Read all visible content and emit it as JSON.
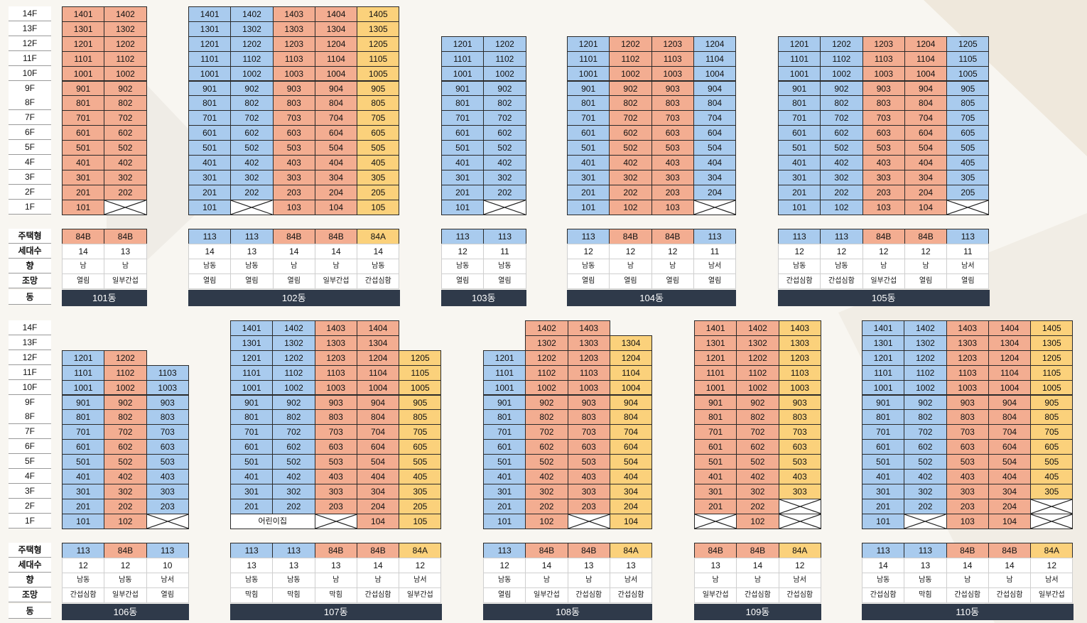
{
  "colors": {
    "blue": "#a9cbee",
    "salmon": "#f3ad91",
    "yellow": "#fbd17b",
    "dong_bar": "#2f3a4a"
  },
  "info_labels": [
    "주택형",
    "세대수",
    "향",
    "조망",
    "동"
  ],
  "floors": {
    "top": [
      "14F",
      "13F",
      "12F",
      "11F",
      "10F",
      "9F",
      "8F",
      "7F",
      "6F",
      "5F",
      "4F",
      "3F",
      "2F",
      "1F"
    ],
    "bottom": [
      "14F",
      "13F",
      "12F",
      "11F",
      "10F",
      "9F",
      "8F",
      "7F",
      "6F",
      "5F",
      "4F",
      "3F",
      "2F",
      "1F"
    ]
  },
  "buildings": [
    {
      "dong": "101동",
      "topFloor": 14,
      "columns": [
        {
          "type": "84B",
          "count": "14",
          "dir": "남",
          "view": "열림",
          "color": "salmon",
          "cells": [
            "1401",
            "1301",
            "1201",
            "1101",
            "1001",
            "901",
            "801",
            "701",
            "601",
            "501",
            "401",
            "301",
            "201",
            "101"
          ]
        },
        {
          "type": "84B",
          "count": "13",
          "dir": "남",
          "view": "일부간섭",
          "color": "salmon",
          "cells": [
            "1402",
            "1302",
            "1202",
            "1102",
            "1002",
            "902",
            "802",
            "702",
            "602",
            "502",
            "402",
            "302",
            "202",
            "X"
          ]
        }
      ]
    },
    {
      "dong": "102동",
      "topFloor": 14,
      "columns": [
        {
          "type": "113",
          "count": "14",
          "dir": "남동",
          "view": "열림",
          "color": "blue",
          "cells": [
            "1401",
            "1301",
            "1201",
            "1101",
            "1001",
            "901",
            "801",
            "701",
            "601",
            "501",
            "401",
            "301",
            "201",
            "101"
          ]
        },
        {
          "type": "113",
          "count": "13",
          "dir": "남동",
          "view": "열림",
          "color": "blue",
          "cells": [
            "1402",
            "1302",
            "1202",
            "1102",
            "1002",
            "902",
            "802",
            "702",
            "602",
            "502",
            "402",
            "302",
            "202",
            "X"
          ]
        },
        {
          "type": "84B",
          "count": "14",
          "dir": "남",
          "view": "열림",
          "color": "salmon",
          "cells": [
            "1403",
            "1303",
            "1203",
            "1103",
            "1003",
            "903",
            "803",
            "703",
            "603",
            "503",
            "403",
            "303",
            "203",
            "103"
          ]
        },
        {
          "type": "84B",
          "count": "14",
          "dir": "남",
          "view": "일부간섭",
          "color": "salmon",
          "cells": [
            "1404",
            "1304",
            "1204",
            "1104",
            "1004",
            "904",
            "804",
            "704",
            "604",
            "504",
            "404",
            "304",
            "204",
            "104"
          ]
        },
        {
          "type": "84A",
          "count": "14",
          "dir": "남동",
          "view": "간섭심함",
          "color": "yellow",
          "cells": [
            "1405",
            "1305",
            "1205",
            "1105",
            "1005",
            "905",
            "805",
            "705",
            "605",
            "505",
            "405",
            "305",
            "205",
            "105"
          ]
        }
      ]
    },
    {
      "dong": "103동",
      "topFloor": 12,
      "columns": [
        {
          "type": "113",
          "count": "12",
          "dir": "남동",
          "view": "열림",
          "color": "blue",
          "cells": [
            "1201",
            "1101",
            "1001",
            "901",
            "801",
            "701",
            "601",
            "501",
            "401",
            "301",
            "201",
            "101"
          ]
        },
        {
          "type": "113",
          "count": "11",
          "dir": "남동",
          "view": "열림",
          "color": "blue",
          "cells": [
            "1202",
            "1102",
            "1002",
            "902",
            "802",
            "702",
            "602",
            "502",
            "402",
            "302",
            "202",
            "X"
          ]
        }
      ]
    },
    {
      "dong": "104동",
      "topFloor": 12,
      "columns": [
        {
          "type": "113",
          "count": "12",
          "dir": "남동",
          "view": "열림",
          "color": "blue",
          "cells": [
            "1201",
            "1101",
            "1001",
            "901",
            "801",
            "701",
            "601",
            "501",
            "401",
            "301",
            "201",
            "101"
          ]
        },
        {
          "type": "84B",
          "count": "12",
          "dir": "남",
          "view": "열림",
          "color": "salmon",
          "cells": [
            "1202",
            "1102",
            "1002",
            "902",
            "802",
            "702",
            "602",
            "502",
            "402",
            "302",
            "202",
            "102"
          ]
        },
        {
          "type": "84B",
          "count": "12",
          "dir": "남",
          "view": "열림",
          "color": "salmon",
          "cells": [
            "1203",
            "1103",
            "1003",
            "903",
            "803",
            "703",
            "603",
            "503",
            "403",
            "303",
            "203",
            "103"
          ]
        },
        {
          "type": "113",
          "count": "11",
          "dir": "남서",
          "view": "열림",
          "color": "blue",
          "cells": [
            "1204",
            "1104",
            "1004",
            "904",
            "804",
            "704",
            "604",
            "504",
            "404",
            "304",
            "204",
            "X"
          ]
        }
      ]
    },
    {
      "dong": "105동",
      "topFloor": 12,
      "columns": [
        {
          "type": "113",
          "count": "12",
          "dir": "남동",
          "view": "간섭심함",
          "color": "blue",
          "cells": [
            "1201",
            "1101",
            "1001",
            "901",
            "801",
            "701",
            "601",
            "501",
            "401",
            "301",
            "201",
            "101"
          ]
        },
        {
          "type": "113",
          "count": "12",
          "dir": "남동",
          "view": "간섭심함",
          "color": "blue",
          "cells": [
            "1202",
            "1102",
            "1002",
            "902",
            "802",
            "702",
            "602",
            "502",
            "402",
            "302",
            "202",
            "102"
          ]
        },
        {
          "type": "84B",
          "count": "12",
          "dir": "남",
          "view": "일부간섭",
          "color": "salmon",
          "cells": [
            "1203",
            "1103",
            "1003",
            "903",
            "803",
            "703",
            "603",
            "503",
            "403",
            "303",
            "203",
            "103"
          ]
        },
        {
          "type": "84B",
          "count": "12",
          "dir": "남",
          "view": "열림",
          "color": "salmon",
          "cells": [
            "1204",
            "1104",
            "1004",
            "904",
            "804",
            "704",
            "604",
            "504",
            "404",
            "304",
            "204",
            "104"
          ]
        },
        {
          "type": "113",
          "count": "11",
          "dir": "남서",
          "view": "열림",
          "color": "blue",
          "cells": [
            "1205",
            "1105",
            "1005",
            "905",
            "805",
            "705",
            "605",
            "505",
            "405",
            "305",
            "205",
            "X"
          ]
        }
      ]
    },
    {
      "dong": "106동",
      "topFloor": 12,
      "columns": [
        {
          "type": "113",
          "count": "12",
          "dir": "남동",
          "view": "간섭심함",
          "color": "blue",
          "cells": [
            "1201",
            "1101",
            "1001",
            "901",
            "801",
            "701",
            "601",
            "501",
            "401",
            "301",
            "201",
            "101"
          ]
        },
        {
          "type": "84B",
          "count": "12",
          "dir": "남동",
          "view": "일부간섭",
          "color": "salmon",
          "cells": [
            "1202",
            "1102",
            "1002",
            "902",
            "802",
            "702",
            "602",
            "502",
            "402",
            "302",
            "202",
            "102"
          ]
        },
        {
          "type": "113",
          "count": "10",
          "dir": "남서",
          "view": "열림",
          "color": "blue",
          "cells": [
            "1103",
            "1003",
            "903",
            "803",
            "703",
            "603",
            "503",
            "403",
            "303",
            "203",
            "X"
          ]
        }
      ]
    },
    {
      "dong": "107동",
      "topFloor": 14,
      "columns": [
        {
          "type": "113",
          "count": "13",
          "dir": "남동",
          "view": "막힘",
          "color": "blue",
          "cells": [
            "1401",
            "1301",
            "1201",
            "1101",
            "1001",
            "901",
            "801",
            "701",
            "601",
            "501",
            "401",
            "301",
            "201",
            "어린이집"
          ]
        },
        {
          "type": "113",
          "count": "13",
          "dir": "남동",
          "view": "막힘",
          "color": "blue",
          "cells": [
            "1402",
            "1302",
            "1202",
            "1102",
            "1002",
            "902",
            "802",
            "702",
            "602",
            "502",
            "402",
            "302",
            "202",
            "SPAN"
          ]
        },
        {
          "type": "84B",
          "count": "13",
          "dir": "남",
          "view": "막힘",
          "color": "salmon",
          "cells": [
            "1403",
            "1303",
            "1203",
            "1103",
            "1003",
            "903",
            "803",
            "703",
            "603",
            "503",
            "403",
            "303",
            "203",
            "X"
          ]
        },
        {
          "type": "84B",
          "count": "14",
          "dir": "남",
          "view": "간섭심함",
          "color": "salmon",
          "cells": [
            "1404",
            "1304",
            "1204",
            "1104",
            "1004",
            "904",
            "804",
            "704",
            "604",
            "504",
            "404",
            "304",
            "204",
            "104"
          ]
        },
        {
          "type": "84A",
          "count": "12",
          "dir": "남서",
          "view": "일부간섭",
          "color": "yellow",
          "cells": [
            "1205",
            "1105",
            "1005",
            "905",
            "805",
            "705",
            "605",
            "505",
            "405",
            "305",
            "205",
            "105"
          ]
        }
      ]
    },
    {
      "dong": "108동",
      "topFloor": 14,
      "columns": [
        {
          "type": "113",
          "count": "12",
          "dir": "남동",
          "view": "열림",
          "color": "blue",
          "cells": [
            "1201",
            "1101",
            "1001",
            "901",
            "801",
            "701",
            "601",
            "501",
            "401",
            "301",
            "201",
            "101"
          ]
        },
        {
          "type": "84B",
          "count": "14",
          "dir": "남",
          "view": "일부간섭",
          "color": "salmon",
          "cells": [
            "1402",
            "1302",
            "1202",
            "1102",
            "1002",
            "902",
            "802",
            "702",
            "602",
            "502",
            "402",
            "302",
            "202",
            "102"
          ]
        },
        {
          "type": "84B",
          "count": "13",
          "dir": "남",
          "view": "간섭심함",
          "color": "salmon",
          "cells": [
            "1403",
            "1303",
            "1203",
            "1103",
            "1003",
            "903",
            "803",
            "703",
            "603",
            "503",
            "403",
            "303",
            "203",
            "X"
          ]
        },
        {
          "type": "84A",
          "count": "13",
          "dir": "남서",
          "view": "간섭심함",
          "color": "yellow",
          "cells": [
            "1304",
            "1204",
            "1104",
            "1004",
            "904",
            "804",
            "704",
            "604",
            "504",
            "404",
            "304",
            "204",
            "104"
          ]
        }
      ]
    },
    {
      "dong": "109동",
      "topFloor": 14,
      "columns": [
        {
          "type": "84B",
          "count": "13",
          "dir": "남",
          "view": "일부간섭",
          "color": "salmon",
          "cells": [
            "1401",
            "1301",
            "1201",
            "1101",
            "1001",
            "901",
            "801",
            "701",
            "601",
            "501",
            "401",
            "301",
            "201",
            "X"
          ]
        },
        {
          "type": "84B",
          "count": "14",
          "dir": "남",
          "view": "간섭심함",
          "color": "salmon",
          "cells": [
            "1402",
            "1302",
            "1202",
            "1102",
            "1002",
            "902",
            "802",
            "702",
            "602",
            "502",
            "402",
            "302",
            "202",
            "102"
          ]
        },
        {
          "type": "84A",
          "count": "12",
          "dir": "남서",
          "view": "간섭심함",
          "color": "yellow",
          "cells": [
            "1403",
            "1303",
            "1203",
            "1103",
            "1003",
            "903",
            "803",
            "703",
            "603",
            "503",
            "403",
            "303",
            "X",
            "X"
          ]
        }
      ]
    },
    {
      "dong": "110동",
      "topFloor": 14,
      "columns": [
        {
          "type": "113",
          "count": "14",
          "dir": "남동",
          "view": "간섭심함",
          "color": "blue",
          "cells": [
            "1401",
            "1301",
            "1201",
            "1101",
            "1001",
            "901",
            "801",
            "701",
            "601",
            "501",
            "401",
            "301",
            "201",
            "101"
          ]
        },
        {
          "type": "113",
          "count": "13",
          "dir": "남동",
          "view": "막힘",
          "color": "blue",
          "cells": [
            "1402",
            "1302",
            "1202",
            "1102",
            "1002",
            "902",
            "802",
            "702",
            "602",
            "502",
            "402",
            "302",
            "202",
            "X"
          ]
        },
        {
          "type": "84B",
          "count": "14",
          "dir": "남",
          "view": "간섭심함",
          "color": "salmon",
          "cells": [
            "1403",
            "1303",
            "1203",
            "1103",
            "1003",
            "903",
            "803",
            "703",
            "603",
            "503",
            "403",
            "303",
            "203",
            "103"
          ]
        },
        {
          "type": "84B",
          "count": "14",
          "dir": "남",
          "view": "간섭심함",
          "color": "salmon",
          "cells": [
            "1404",
            "1304",
            "1204",
            "1104",
            "1004",
            "904",
            "804",
            "704",
            "604",
            "504",
            "404",
            "304",
            "204",
            "104"
          ]
        },
        {
          "type": "84A",
          "count": "12",
          "dir": "남서",
          "view": "일부간섭",
          "color": "yellow",
          "cells": [
            "1405",
            "1305",
            "1205",
            "1105",
            "1005",
            "905",
            "805",
            "705",
            "605",
            "505",
            "405",
            "305",
            "X",
            "X"
          ]
        }
      ]
    }
  ]
}
